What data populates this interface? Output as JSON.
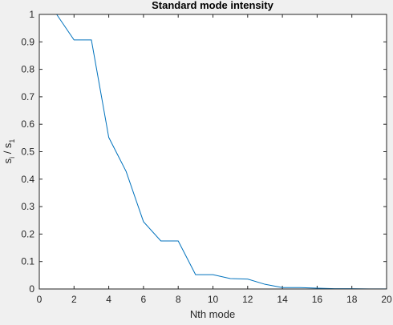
{
  "chart_data": {
    "type": "line",
    "title": "Standard mode intensity",
    "xlabel": "Nth mode",
    "ylabel": {
      "base1": "s",
      "sub1": "i",
      "sep": " / ",
      "base2": "s",
      "sub2": "1"
    },
    "xlim": [
      0,
      20
    ],
    "ylim": [
      0,
      1
    ],
    "xticks": [
      0,
      2,
      4,
      6,
      8,
      10,
      12,
      14,
      16,
      18,
      20
    ],
    "yticks": [
      0,
      0.1,
      0.2,
      0.3,
      0.4,
      0.5,
      0.6,
      0.7,
      0.8,
      0.9,
      1
    ],
    "grid": false,
    "series": [
      {
        "x": [
          1,
          2,
          3,
          4,
          5,
          6,
          7,
          8,
          9,
          10,
          11,
          12,
          13,
          14,
          15,
          16,
          17,
          18,
          19,
          20
        ],
        "y": [
          1.0,
          0.907,
          0.907,
          0.552,
          0.428,
          0.245,
          0.175,
          0.175,
          0.052,
          0.052,
          0.038,
          0.036,
          0.017,
          0.005,
          0.005,
          0.003,
          0.001,
          0.001,
          0.0005,
          0.0005
        ]
      }
    ],
    "colors": {
      "line": "#0072bd",
      "axes_bg": "#ffffff",
      "axes_edge": "#262626",
      "figure_bg": "#f0f0f0"
    }
  }
}
